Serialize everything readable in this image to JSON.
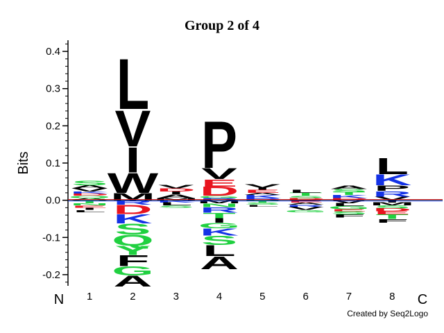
{
  "chart_data": {
    "type": "sequence-logo",
    "title": "Group 2 of 4",
    "ylabel": "Bits",
    "ylim": [
      -0.23,
      0.43
    ],
    "yticks": [
      -0.2,
      -0.1,
      0.0,
      0.1,
      0.2,
      0.3,
      0.4
    ],
    "yticks_labels": [
      "-0.2",
      "-0.1",
      "0.0",
      "0.1",
      "0.2",
      "0.3",
      "0.4"
    ],
    "positions": [
      "1",
      "2",
      "3",
      "4",
      "5",
      "6",
      "7",
      "8"
    ],
    "n_label": "N",
    "c_label": "C",
    "credit": "Created by Seq2Logo",
    "colors": {
      "hydrophobic": "#000000",
      "acidic": "#e8141e",
      "basic": "#1432e6",
      "polar": "#20d040"
    },
    "columns": [
      {
        "position": "1",
        "positive": [
          {
            "letter": "A",
            "height": 0.006,
            "color": "#000000"
          },
          {
            "letter": "Q",
            "height": 0.006,
            "color": "#20d040"
          },
          {
            "letter": "D",
            "height": 0.006,
            "color": "#e8141e"
          },
          {
            "letter": "K",
            "height": 0.006,
            "color": "#1432e6"
          },
          {
            "letter": "V",
            "height": 0.008,
            "color": "#000000"
          },
          {
            "letter": "A",
            "height": 0.008,
            "color": "#000000"
          },
          {
            "letter": "S",
            "height": 0.012,
            "color": "#20d040"
          }
        ],
        "negative": [
          {
            "letter": "T",
            "height": 0.008,
            "color": "#20d040"
          },
          {
            "letter": "N",
            "height": 0.006,
            "color": "#20d040"
          },
          {
            "letter": "E",
            "height": 0.006,
            "color": "#e8141e"
          },
          {
            "letter": "I",
            "height": 0.006,
            "color": "#000000"
          },
          {
            "letter": "L",
            "height": 0.006,
            "color": "#000000"
          }
        ]
      },
      {
        "position": "2",
        "positive": [
          {
            "letter": "M",
            "height": 0.02,
            "color": "#000000"
          },
          {
            "letter": "W",
            "height": 0.055,
            "color": "#000000"
          },
          {
            "letter": "I",
            "height": 0.07,
            "color": "#000000"
          },
          {
            "letter": "V",
            "height": 0.1,
            "color": "#000000"
          },
          {
            "letter": "L",
            "height": 0.14,
            "color": "#000000"
          }
        ],
        "negative": [
          {
            "letter": "R",
            "height": 0.012,
            "color": "#1432e6"
          },
          {
            "letter": "D",
            "height": 0.025,
            "color": "#e8141e"
          },
          {
            "letter": "K",
            "height": 0.025,
            "color": "#1432e6"
          },
          {
            "letter": "S",
            "height": 0.03,
            "color": "#20d040"
          },
          {
            "letter": "Q",
            "height": 0.03,
            "color": "#20d040"
          },
          {
            "letter": "Y",
            "height": 0.025,
            "color": "#20d040"
          },
          {
            "letter": "F",
            "height": 0.03,
            "color": "#000000"
          },
          {
            "letter": "G",
            "height": 0.025,
            "color": "#20d040"
          },
          {
            "letter": "A",
            "height": 0.03,
            "color": "#000000"
          }
        ]
      },
      {
        "position": "3",
        "positive": [
          {
            "letter": "M",
            "height": 0.006,
            "color": "#000000"
          },
          {
            "letter": "A",
            "height": 0.01,
            "color": "#000000"
          },
          {
            "letter": "I",
            "height": 0.008,
            "color": "#000000"
          },
          {
            "letter": "D",
            "height": 0.008,
            "color": "#e8141e"
          },
          {
            "letter": "V",
            "height": 0.01,
            "color": "#000000"
          }
        ],
        "negative": [
          {
            "letter": "K",
            "height": 0.006,
            "color": "#1432e6"
          },
          {
            "letter": "L",
            "height": 0.008,
            "color": "#000000"
          },
          {
            "letter": "S",
            "height": 0.006,
            "color": "#20d040"
          }
        ]
      },
      {
        "position": "4",
        "positive": [
          {
            "letter": "R",
            "height": 0.006,
            "color": "#1432e6"
          },
          {
            "letter": "G",
            "height": 0.006,
            "color": "#20d040"
          },
          {
            "letter": "D",
            "height": 0.025,
            "color": "#e8141e"
          },
          {
            "letter": "E",
            "height": 0.02,
            "color": "#e8141e"
          },
          {
            "letter": "V",
            "height": 0.03,
            "color": "#000000"
          },
          {
            "letter": "P",
            "height": 0.13,
            "color": "#000000"
          }
        ],
        "negative": [
          {
            "letter": "M",
            "height": 0.008,
            "color": "#000000"
          },
          {
            "letter": "N",
            "height": 0.01,
            "color": "#20d040"
          },
          {
            "letter": "R",
            "height": 0.015,
            "color": "#1432e6"
          },
          {
            "letter": "T",
            "height": 0.015,
            "color": "#20d040"
          },
          {
            "letter": "I",
            "height": 0.012,
            "color": "#000000"
          },
          {
            "letter": "G",
            "height": 0.015,
            "color": "#20d040"
          },
          {
            "letter": "K",
            "height": 0.02,
            "color": "#1432e6"
          },
          {
            "letter": "S",
            "height": 0.025,
            "color": "#20d040"
          },
          {
            "letter": "L",
            "height": 0.03,
            "color": "#000000"
          },
          {
            "letter": "A",
            "height": 0.035,
            "color": "#000000"
          }
        ]
      },
      {
        "position": "5",
        "positive": [
          {
            "letter": "R",
            "height": 0.006,
            "color": "#1432e6"
          },
          {
            "letter": "K",
            "height": 0.008,
            "color": "#1432e6"
          },
          {
            "letter": "A",
            "height": 0.006,
            "color": "#000000"
          },
          {
            "letter": "E",
            "height": 0.008,
            "color": "#e8141e"
          },
          {
            "letter": "I",
            "height": 0.006,
            "color": "#000000"
          },
          {
            "letter": "V",
            "height": 0.01,
            "color": "#000000"
          }
        ],
        "negative": [
          {
            "letter": "T",
            "height": 0.006,
            "color": "#20d040"
          },
          {
            "letter": "S",
            "height": 0.006,
            "color": "#20d040"
          },
          {
            "letter": "L",
            "height": 0.005,
            "color": "#000000"
          }
        ]
      },
      {
        "position": "6",
        "positive": [
          {
            "letter": "D",
            "height": 0.006,
            "color": "#e8141e"
          },
          {
            "letter": "S",
            "height": 0.006,
            "color": "#20d040"
          },
          {
            "letter": "T",
            "height": 0.008,
            "color": "#20d040"
          },
          {
            "letter": "L",
            "height": 0.008,
            "color": "#000000"
          }
        ],
        "negative": [
          {
            "letter": "E",
            "height": 0.006,
            "color": "#e8141e"
          },
          {
            "letter": "A",
            "height": 0.006,
            "color": "#000000"
          },
          {
            "letter": "R",
            "height": 0.006,
            "color": "#1432e6"
          },
          {
            "letter": "V",
            "height": 0.008,
            "color": "#000000"
          },
          {
            "letter": "G",
            "height": 0.006,
            "color": "#20d040"
          }
        ]
      },
      {
        "position": "7",
        "positive": [
          {
            "letter": "D",
            "height": 0.006,
            "color": "#e8141e"
          },
          {
            "letter": "K",
            "height": 0.008,
            "color": "#1432e6"
          },
          {
            "letter": "T",
            "height": 0.008,
            "color": "#20d040"
          },
          {
            "letter": "S",
            "height": 0.008,
            "color": "#20d040"
          },
          {
            "letter": "A",
            "height": 0.01,
            "color": "#000000"
          }
        ],
        "negative": [
          {
            "letter": "V",
            "height": 0.008,
            "color": "#000000"
          },
          {
            "letter": "L",
            "height": 0.008,
            "color": "#000000"
          },
          {
            "letter": "G",
            "height": 0.008,
            "color": "#20d040"
          },
          {
            "letter": "E",
            "height": 0.006,
            "color": "#e8141e"
          },
          {
            "letter": "S",
            "height": 0.008,
            "color": "#20d040"
          },
          {
            "letter": "F",
            "height": 0.008,
            "color": "#000000"
          }
        ]
      },
      {
        "position": "8",
        "positive": [
          {
            "letter": "V",
            "height": 0.01,
            "color": "#000000"
          },
          {
            "letter": "R",
            "height": 0.015,
            "color": "#1432e6"
          },
          {
            "letter": "P",
            "height": 0.015,
            "color": "#000000"
          },
          {
            "letter": "K",
            "height": 0.03,
            "color": "#1432e6"
          },
          {
            "letter": "L",
            "height": 0.045,
            "color": "#000000"
          }
        ],
        "negative": [
          {
            "letter": "I",
            "height": 0.006,
            "color": "#000000"
          },
          {
            "letter": "M",
            "height": 0.008,
            "color": "#000000"
          },
          {
            "letter": "S",
            "height": 0.008,
            "color": "#20d040"
          },
          {
            "letter": "D",
            "height": 0.008,
            "color": "#e8141e"
          },
          {
            "letter": "E",
            "height": 0.008,
            "color": "#e8141e"
          },
          {
            "letter": "T",
            "height": 0.012,
            "color": "#20d040"
          },
          {
            "letter": "F",
            "height": 0.01,
            "color": "#000000"
          }
        ]
      }
    ]
  }
}
